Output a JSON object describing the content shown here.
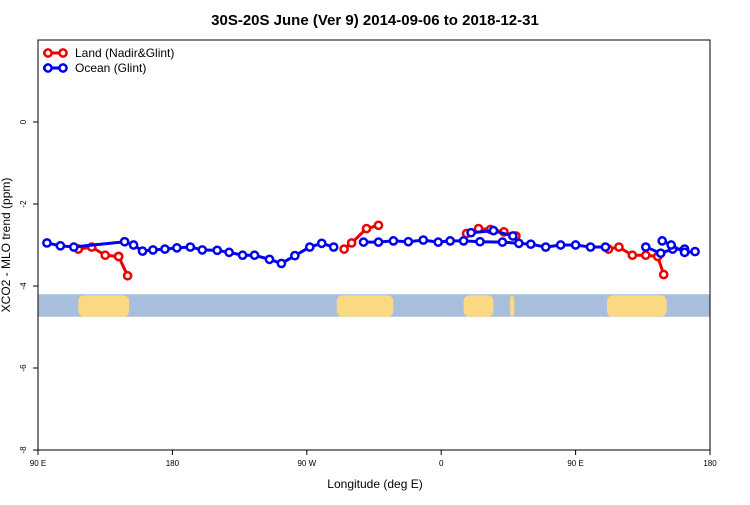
{
  "chart_data": {
    "type": "line",
    "title": "30S-20S June (Ver 9)   2014-09-06 to 2018-12-31",
    "xlabel": "Longitude (deg E)",
    "ylabel": "XCO2 - MLO trend (ppm)",
    "xlim": [
      90,
      450
    ],
    "ylim": [
      -8,
      2
    ],
    "xticks": [
      {
        "value": 90,
        "label": "90 E"
      },
      {
        "value": 180,
        "label": "180"
      },
      {
        "value": 270,
        "label": "90 W"
      },
      {
        "value": 360,
        "label": "0"
      },
      {
        "value": 450,
        "label": "90 E"
      },
      {
        "value": 540,
        "label": "180"
      }
    ],
    "yticks": [
      {
        "value": 0,
        "label": "0"
      },
      {
        "value": -2,
        "label": "-2"
      },
      {
        "value": -4,
        "label": "-4"
      },
      {
        "value": -6,
        "label": "-6"
      },
      {
        "value": -8,
        "label": "-8"
      }
    ],
    "legend_position": "top-left",
    "grid": false,
    "map_strip": {
      "y_range": [
        -4.75,
        -4.2
      ],
      "ocean_color": "#a7bedd",
      "land_color": "#fbd982",
      "land_x_ranges": [
        [
          117,
          151
        ],
        [
          290,
          328
        ],
        [
          375,
          395
        ],
        [
          406,
          409
        ],
        [
          471,
          511
        ]
      ]
    },
    "series": [
      {
        "name": "Land (Nadir&Glint)",
        "color": "#ee0000",
        "segments": [
          {
            "x": [
              117,
              126,
              135,
              144
            ],
            "y": [
              -3.1,
              -3.05,
              -3.25,
              -3.28
            ]
          },
          {
            "x": [
              144,
              150
            ],
            "y": [
              -3.28,
              -3.75
            ]
          },
          {
            "x": [
              295,
              300,
              310,
              318
            ],
            "y": [
              -3.1,
              -2.95,
              -2.6,
              -2.52
            ]
          },
          {
            "x": [
              377,
              385,
              393,
              402,
              410
            ],
            "y": [
              -2.72,
              -2.6,
              -2.62,
              -2.68,
              -2.78
            ]
          },
          {
            "x": [
              472,
              479,
              488,
              497,
              505,
              509
            ],
            "y": [
              -3.1,
              -3.05,
              -3.25,
              -3.25,
              -3.28,
              -3.72
            ]
          }
        ]
      },
      {
        "name": "Ocean (Glint)",
        "color": "#0000ee",
        "segments": [
          {
            "x": [
              96,
              105,
              114,
              148,
              154,
              160,
              167,
              175,
              183,
              192,
              200,
              210,
              218,
              227,
              235,
              245,
              253,
              262,
              272,
              280,
              288
            ],
            "y": [
              -2.95,
              -3.02,
              -3.05,
              -2.92,
              -3.0,
              -3.15,
              -3.12,
              -3.1,
              -3.07,
              -3.05,
              -3.12,
              -3.13,
              -3.18,
              -3.25,
              -3.25,
              -3.35,
              -3.45,
              -3.26,
              -3.05,
              -2.96,
              -3.05
            ]
          },
          {
            "x": [
              308,
              318,
              328,
              338,
              348,
              358,
              366,
              375,
              386,
              401,
              412,
              420,
              430,
              440,
              450,
              460,
              470
            ],
            "y": [
              -2.93,
              -2.93,
              -2.9,
              -2.92,
              -2.88,
              -2.93,
              -2.9,
              -2.9,
              -2.92,
              -2.93,
              -2.96,
              -2.98,
              -3.05,
              -3.0,
              -3.0,
              -3.05,
              -3.05
            ]
          },
          {
            "x": [
              497,
              507,
              515,
              523
            ],
            "y": [
              -3.05,
              -3.2,
              -3.1,
              -3.1
            ]
          },
          {
            "x": [
              380,
              395,
              408
            ],
            "y": [
              -2.7,
              -2.65,
              -2.78
            ]
          },
          {
            "x": [
              508,
              514,
              523,
              530
            ],
            "y": [
              -2.9,
              -3.0,
              -3.18,
              -3.16
            ]
          }
        ]
      }
    ]
  }
}
